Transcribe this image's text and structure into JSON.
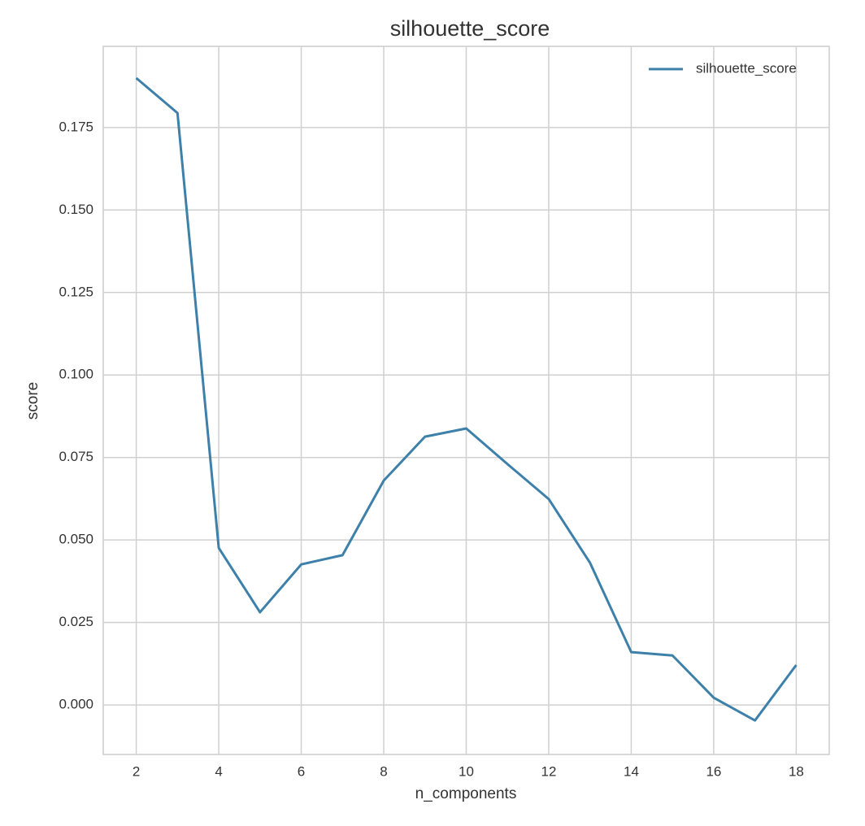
{
  "chart_data": {
    "type": "line",
    "title": "silhouette_score",
    "x_label": "n_components",
    "y_label": "score",
    "x": [
      2,
      3,
      4,
      5,
      6,
      7,
      8,
      9,
      10,
      11,
      12,
      13,
      14,
      15,
      16,
      17,
      18
    ],
    "series": [
      {
        "name": "silhouette_score",
        "color": "#3d80a9",
        "values": [
          0.19,
          0.1794,
          0.0476,
          0.0281,
          0.0426,
          0.0454,
          0.068,
          0.0813,
          0.0838,
          0.073,
          0.0624,
          0.0431,
          0.016,
          0.015,
          0.0022,
          -0.0047,
          0.0121
        ]
      }
    ],
    "xlim": [
      1.2,
      18.8
    ],
    "ylim": [
      -0.015,
      0.1996
    ],
    "xticks": [
      2,
      4,
      6,
      8,
      10,
      12,
      14,
      16,
      18
    ],
    "yticks": [
      {
        "value": 0,
        "label": "0.000"
      },
      {
        "value": 0.025,
        "label": "0.025"
      },
      {
        "value": 0.05,
        "label": "0.050"
      },
      {
        "value": 0.075,
        "label": "0.075"
      },
      {
        "value": 0.1,
        "label": "0.100"
      },
      {
        "value": 0.125,
        "label": "0.125"
      },
      {
        "value": 0.15,
        "label": "0.150"
      },
      {
        "value": 0.175,
        "label": "0.175"
      }
    ],
    "grid": true,
    "legend": "upper right"
  }
}
